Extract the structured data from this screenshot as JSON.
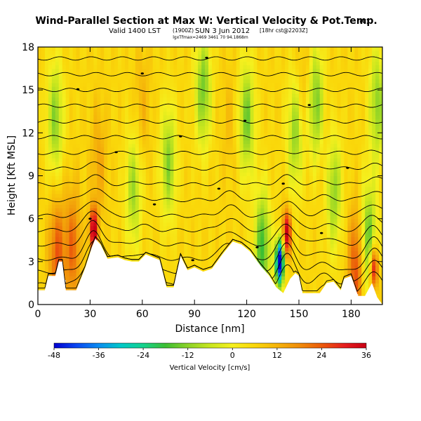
{
  "header": {
    "title": "Wind-Parallel Section at Max W: Vertical Velocity & Pot.Temp.",
    "copyright": "(C)",
    "valid_main": "Valid 1400 LST",
    "valid_z": "(1900Z)",
    "valid_date": "SUN 3 Jun 2012",
    "valid_run": "[18hr cst@2203Z]",
    "subtitle2": "lgxTfmax=2469 3461 70 94.1868m"
  },
  "colors": {
    "terrain": "#ffffff",
    "contour": "#000000",
    "frame": "#000000"
  },
  "chart_data": {
    "type": "heatmap",
    "xlabel": "Distance [nm]",
    "ylabel": "Height [Kft MSL]",
    "xlim": [
      0,
      198
    ],
    "ylim": [
      0,
      18
    ],
    "x_ticks": [
      0,
      30,
      60,
      90,
      120,
      150,
      180
    ],
    "y_ticks": [
      0,
      3,
      6,
      9,
      12,
      15,
      18
    ],
    "colorbar": {
      "label": "Vertical Velocity [cm/s]",
      "ticks": [
        -48,
        -36,
        -24,
        -12,
        0,
        12,
        24,
        36
      ],
      "range": [
        -48,
        36
      ],
      "stops": [
        "#0000d0",
        "#0a46f0",
        "#0a8cf0",
        "#00c8c8",
        "#14d28c",
        "#3cbe32",
        "#8cd228",
        "#c8e61e",
        "#f5f01e",
        "#fad70a",
        "#f5b40a",
        "#f08c0a",
        "#eb5a0a",
        "#e61e1e",
        "#c80014"
      ]
    },
    "terrain_profile_nm_kft": [
      [
        0,
        1
      ],
      [
        4,
        1
      ],
      [
        6,
        2
      ],
      [
        10,
        2
      ],
      [
        12,
        3
      ],
      [
        14,
        3
      ],
      [
        16,
        1
      ],
      [
        22,
        1
      ],
      [
        27,
        2.5
      ],
      [
        31,
        4
      ],
      [
        33,
        4.6
      ],
      [
        36,
        4.2
      ],
      [
        40,
        3.2
      ],
      [
        46,
        3.3
      ],
      [
        50,
        3.1
      ],
      [
        54,
        3
      ],
      [
        58,
        3
      ],
      [
        62,
        3.5
      ],
      [
        66,
        3.3
      ],
      [
        70,
        3.1
      ],
      [
        74,
        1.2
      ],
      [
        78,
        1.2
      ],
      [
        82,
        3.4
      ],
      [
        86,
        2.4
      ],
      [
        90,
        2.6
      ],
      [
        95,
        2.3
      ],
      [
        100,
        2.5
      ],
      [
        106,
        3.5
      ],
      [
        112,
        4.4
      ],
      [
        117,
        4.2
      ],
      [
        122,
        3.7
      ],
      [
        128,
        2.7
      ],
      [
        133,
        2
      ],
      [
        137,
        1.2
      ],
      [
        141,
        0.8
      ],
      [
        145,
        1.8
      ],
      [
        148,
        2.2
      ],
      [
        150,
        2
      ],
      [
        152,
        0.8
      ],
      [
        158,
        0.8
      ],
      [
        162,
        0.8
      ],
      [
        166,
        1.5
      ],
      [
        170,
        1.6
      ],
      [
        174,
        1
      ],
      [
        176,
        1.8
      ],
      [
        180,
        2
      ],
      [
        184,
        0.6
      ],
      [
        188,
        0.6
      ],
      [
        192,
        1.5
      ],
      [
        195,
        0.5
      ],
      [
        198,
        0
      ]
    ],
    "updraft_cores_nm_kft_cms": [
      [
        32,
        5.2,
        38
      ],
      [
        143,
        5.0,
        38
      ],
      [
        193,
        2.5,
        38
      ],
      [
        11,
        3.5,
        24
      ],
      [
        20,
        4.0,
        22
      ],
      [
        183,
        2.5,
        26
      ],
      [
        35,
        10,
        14
      ],
      [
        60,
        14,
        12
      ],
      [
        152,
        15,
        12
      ],
      [
        110,
        13,
        10
      ],
      [
        165,
        11,
        10
      ]
    ],
    "downdraft_cores_nm_kft_cms": [
      [
        139,
        3,
        -52
      ],
      [
        129,
        4,
        -18
      ],
      [
        190,
        4.5,
        -16
      ],
      [
        120,
        13,
        -14
      ],
      [
        95,
        15,
        -14
      ],
      [
        160,
        14,
        -14
      ],
      [
        170,
        8,
        -12
      ],
      [
        10,
        13,
        -12
      ],
      [
        148,
        12,
        -12
      ],
      [
        75,
        10,
        -12
      ],
      [
        195,
        14,
        -12
      ],
      [
        55,
        8,
        -10
      ]
    ],
    "isentrope_heights_kft": [
      0.5,
      1.4,
      2.3,
      3.2,
      4.2,
      5.2,
      6.2,
      7.3,
      8.4,
      9.5,
      10.6,
      11.7,
      12.8,
      13.9,
      15.0,
      16.1,
      17.2
    ]
  }
}
